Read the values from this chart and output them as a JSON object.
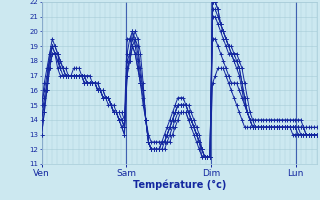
{
  "background_color": "#cce8f0",
  "grid_color": "#a8ccd8",
  "line_color": "#1428a0",
  "xlabel": "Température (°c)",
  "ylim": [
    11,
    22
  ],
  "yticks": [
    11,
    12,
    13,
    14,
    15,
    16,
    17,
    18,
    19,
    20,
    21,
    22
  ],
  "day_labels": [
    "Ven",
    "Sam",
    "Dim",
    "Lun"
  ],
  "day_positions": [
    0,
    32,
    64,
    96
  ],
  "xlim": [
    0,
    104
  ],
  "series": [
    [
      13.0,
      14.5,
      16.5,
      18.5,
      19.0,
      18.5,
      17.5,
      17.0,
      17.0,
      17.0,
      17.0,
      17.0,
      17.5,
      17.5,
      17.5,
      17.0,
      17.0,
      17.0,
      17.0,
      16.5,
      16.5,
      16.5,
      16.0,
      16.0,
      15.5,
      15.5,
      15.0,
      15.0,
      14.5,
      14.5,
      14.5,
      14.0,
      19.5,
      19.5,
      19.0,
      18.5,
      17.5,
      16.5,
      16.0,
      14.0,
      13.0,
      12.5,
      12.5,
      12.5,
      12.5,
      12.5,
      12.5,
      12.5,
      13.0,
      13.5,
      14.0,
      14.5,
      14.5,
      14.5,
      14.5,
      14.0,
      13.5,
      13.0,
      12.5,
      12.0,
      11.5,
      11.5,
      11.5,
      11.5,
      22.0,
      22.0,
      21.5,
      20.5,
      20.0,
      19.5,
      19.0,
      19.0,
      18.5,
      18.0,
      17.5,
      16.5,
      15.5,
      14.5,
      14.0,
      13.5,
      13.5,
      13.5,
      13.5,
      13.5,
      13.5,
      13.5,
      13.5,
      13.5,
      13.5,
      13.5,
      13.5,
      13.5,
      13.5,
      13.5,
      13.0,
      13.0,
      13.0,
      13.0,
      13.0,
      13.0,
      13.0,
      13.0,
      13.0,
      13.0
    ],
    [
      13.0,
      14.5,
      16.0,
      17.5,
      18.5,
      18.5,
      18.5,
      18.0,
      17.5,
      17.0,
      17.0,
      17.0,
      17.0,
      17.0,
      17.0,
      17.0,
      17.0,
      16.5,
      16.5,
      16.5,
      16.5,
      16.0,
      16.0,
      15.5,
      15.5,
      15.5,
      15.0,
      14.5,
      14.5,
      14.0,
      14.0,
      13.5,
      18.0,
      18.5,
      19.5,
      20.0,
      19.5,
      18.5,
      16.5,
      14.0,
      12.5,
      12.0,
      12.0,
      12.0,
      12.0,
      12.0,
      12.0,
      12.5,
      12.5,
      13.0,
      13.5,
      14.0,
      14.5,
      14.5,
      14.5,
      14.0,
      14.0,
      13.5,
      13.0,
      12.5,
      11.5,
      11.5,
      11.5,
      11.5,
      21.5,
      21.5,
      21.0,
      20.5,
      20.0,
      19.5,
      19.0,
      18.5,
      18.0,
      17.5,
      17.0,
      16.0,
      15.0,
      14.5,
      14.0,
      13.5,
      13.5,
      13.5,
      13.5,
      13.5,
      13.5,
      13.5,
      13.5,
      13.5,
      13.5,
      13.5,
      13.5,
      13.5,
      13.5,
      13.5,
      13.5,
      13.5,
      13.5,
      13.5,
      13.5,
      13.0,
      13.0,
      13.0,
      13.0,
      13.0
    ],
    [
      14.0,
      15.0,
      16.0,
      17.5,
      18.5,
      18.5,
      18.0,
      17.5,
      17.5,
      17.0,
      17.0,
      17.0,
      17.0,
      17.0,
      17.0,
      17.0,
      16.5,
      16.5,
      16.5,
      16.5,
      16.5,
      16.0,
      16.0,
      15.5,
      15.5,
      15.5,
      15.0,
      14.5,
      14.5,
      14.0,
      14.0,
      13.5,
      17.5,
      18.0,
      19.0,
      19.5,
      19.0,
      17.5,
      16.0,
      14.0,
      12.5,
      12.0,
      12.0,
      12.0,
      12.0,
      12.0,
      12.5,
      13.0,
      13.5,
      14.0,
      14.5,
      15.0,
      15.0,
      15.0,
      15.0,
      14.5,
      14.0,
      13.5,
      13.0,
      12.5,
      12.0,
      11.5,
      11.5,
      11.5,
      16.5,
      17.0,
      17.5,
      17.5,
      17.5,
      17.0,
      16.5,
      16.0,
      15.5,
      15.0,
      14.5,
      14.0,
      13.5,
      13.5,
      13.5,
      13.5,
      13.5,
      13.5,
      13.5,
      13.5,
      13.5,
      13.5,
      13.5,
      13.5,
      13.5,
      13.5,
      13.5,
      13.5,
      13.5,
      13.5,
      13.5,
      13.5,
      13.0,
      13.0,
      13.0,
      13.0,
      13.0,
      13.0,
      13.0,
      13.0
    ],
    [
      15.0,
      16.0,
      17.0,
      18.0,
      19.0,
      19.0,
      18.5,
      18.0,
      17.5,
      17.5,
      17.0,
      17.0,
      17.0,
      17.0,
      17.0,
      17.0,
      17.0,
      16.5,
      16.5,
      16.5,
      16.5,
      16.5,
      16.0,
      16.0,
      15.5,
      15.5,
      15.0,
      14.5,
      14.5,
      14.5,
      14.0,
      13.5,
      17.0,
      18.5,
      20.0,
      19.5,
      18.5,
      17.0,
      16.0,
      14.0,
      12.5,
      12.0,
      12.0,
      12.0,
      12.0,
      12.5,
      12.5,
      13.0,
      13.5,
      14.0,
      14.5,
      15.0,
      15.0,
      15.0,
      15.0,
      14.5,
      14.0,
      13.5,
      13.0,
      12.5,
      12.0,
      11.5,
      11.5,
      11.5,
      22.0,
      22.0,
      21.5,
      20.5,
      20.0,
      19.5,
      19.0,
      18.5,
      18.5,
      18.5,
      18.0,
      17.5,
      16.5,
      15.5,
      14.5,
      14.0,
      13.5,
      13.5,
      13.5,
      13.5,
      13.5,
      13.5,
      13.5,
      13.5,
      13.5,
      13.5,
      13.5,
      13.5,
      13.5,
      13.5,
      13.5,
      13.5,
      13.5,
      13.5,
      13.5,
      13.0,
      13.0,
      13.0,
      13.0,
      13.0
    ],
    [
      15.0,
      16.5,
      17.5,
      18.5,
      19.5,
      19.0,
      18.5,
      17.5,
      17.5,
      17.0,
      17.0,
      17.0,
      17.0,
      17.0,
      17.0,
      17.0,
      16.5,
      16.5,
      16.5,
      16.5,
      16.5,
      16.0,
      16.0,
      15.5,
      15.5,
      15.5,
      15.0,
      14.5,
      14.5,
      14.0,
      13.5,
      13.0,
      18.5,
      19.5,
      20.0,
      19.0,
      18.0,
      16.5,
      15.5,
      14.0,
      12.5,
      12.0,
      12.0,
      12.0,
      12.0,
      12.5,
      13.0,
      13.5,
      14.0,
      14.5,
      15.0,
      15.5,
      15.5,
      15.5,
      15.0,
      15.0,
      14.5,
      14.0,
      13.5,
      13.0,
      12.0,
      11.5,
      11.5,
      11.5,
      21.0,
      21.0,
      20.5,
      20.0,
      19.5,
      19.0,
      18.5,
      18.5,
      18.0,
      18.0,
      17.5,
      16.5,
      15.5,
      14.5,
      14.0,
      13.5,
      13.5,
      13.5,
      13.5,
      13.5,
      13.5,
      13.5,
      13.5,
      13.5,
      13.5,
      13.5,
      13.5,
      13.5,
      13.5,
      13.5,
      13.5,
      13.5,
      13.5,
      13.0,
      13.0,
      13.0,
      13.0,
      13.0,
      13.0,
      13.0
    ],
    [
      14.0,
      15.5,
      16.5,
      18.0,
      19.0,
      18.5,
      18.0,
      17.5,
      17.0,
      17.0,
      17.0,
      17.0,
      17.0,
      17.0,
      17.0,
      17.0,
      16.5,
      16.5,
      16.5,
      16.5,
      16.5,
      16.0,
      16.0,
      15.5,
      15.5,
      15.0,
      15.0,
      14.5,
      14.5,
      14.0,
      13.5,
      13.0,
      17.0,
      18.0,
      19.0,
      18.5,
      17.5,
      16.5,
      15.0,
      14.0,
      12.5,
      12.0,
      12.0,
      12.0,
      12.0,
      12.5,
      12.5,
      13.0,
      13.5,
      14.0,
      14.5,
      15.0,
      15.0,
      15.0,
      15.0,
      14.5,
      14.0,
      13.5,
      13.0,
      12.5,
      12.0,
      11.5,
      11.5,
      11.5,
      19.5,
      19.5,
      19.0,
      18.5,
      18.0,
      17.5,
      17.0,
      16.5,
      16.5,
      16.5,
      16.0,
      15.5,
      15.0,
      14.5,
      14.0,
      14.0,
      14.0,
      14.0,
      14.0,
      14.0,
      14.0,
      14.0,
      14.0,
      14.0,
      14.0,
      14.0,
      14.0,
      14.0,
      14.0,
      14.0,
      14.0,
      14.0,
      14.0,
      14.0,
      13.5,
      13.5,
      13.5,
      13.5,
      13.5,
      13.5
    ]
  ]
}
